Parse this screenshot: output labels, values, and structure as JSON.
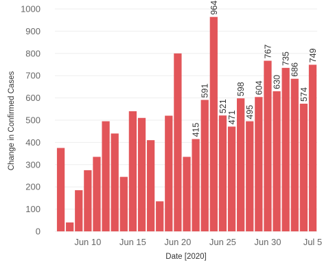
{
  "chart_data": {
    "type": "bar",
    "title": "",
    "xlabel": "Date [2020]",
    "ylabel": "Change in Confirmed Cases",
    "ylim": [
      0,
      1000
    ],
    "y_ticks": [
      "0",
      "100",
      "200",
      "300",
      "400",
      "500",
      "600",
      "700",
      "800",
      "900",
      "1000"
    ],
    "x_tick_labels": [
      {
        "label": "Jun 10",
        "category": "Jun 10"
      },
      {
        "label": "Jun 15",
        "category": "Jun 15"
      },
      {
        "label": "Jun 20",
        "category": "Jun 20"
      },
      {
        "label": "Jun 25",
        "category": "Jun 25"
      },
      {
        "label": "Jun 30",
        "category": "Jun 30"
      },
      {
        "label": "Jul 5",
        "category": "Jul 5"
      }
    ],
    "categories": [
      "Jun 7",
      "Jun 8",
      "Jun 9",
      "Jun 10",
      "Jun 11",
      "Jun 12",
      "Jun 13",
      "Jun 14",
      "Jun 15",
      "Jun 16",
      "Jun 17",
      "Jun 18",
      "Jun 19",
      "Jun 20",
      "Jun 21",
      "Jun 22",
      "Jun 23",
      "Jun 24",
      "Jun 25",
      "Jun 26",
      "Jun 27",
      "Jun 28",
      "Jun 29",
      "Jun 30",
      "Jul 1",
      "Jul 2",
      "Jul 3",
      "Jul 4",
      "Jul 5"
    ],
    "values": [
      375,
      40,
      185,
      275,
      335,
      495,
      440,
      245,
      540,
      510,
      410,
      135,
      520,
      800,
      335,
      415,
      591,
      964,
      521,
      471,
      598,
      495,
      604,
      767,
      630,
      735,
      686,
      574,
      749
    ],
    "data_labels": [
      {
        "category": "Jun 22",
        "text": "415"
      },
      {
        "category": "Jun 23",
        "text": "591"
      },
      {
        "category": "Jun 24",
        "text": "964"
      },
      {
        "category": "Jun 25",
        "text": "521"
      },
      {
        "category": "Jun 26",
        "text": "471"
      },
      {
        "category": "Jun 27",
        "text": "598"
      },
      {
        "category": "Jun 28",
        "text": "495"
      },
      {
        "category": "Jun 29",
        "text": "604"
      },
      {
        "category": "Jun 30",
        "text": "767"
      },
      {
        "category": "Jul 1",
        "text": "630"
      },
      {
        "category": "Jul 2",
        "text": "735"
      },
      {
        "category": "Jul 3",
        "text": "686"
      },
      {
        "category": "Jul 4",
        "text": "574"
      },
      {
        "category": "Jul 5",
        "text": "749"
      }
    ],
    "bar_color": "#e25559",
    "grid": true,
    "legend": "none"
  }
}
